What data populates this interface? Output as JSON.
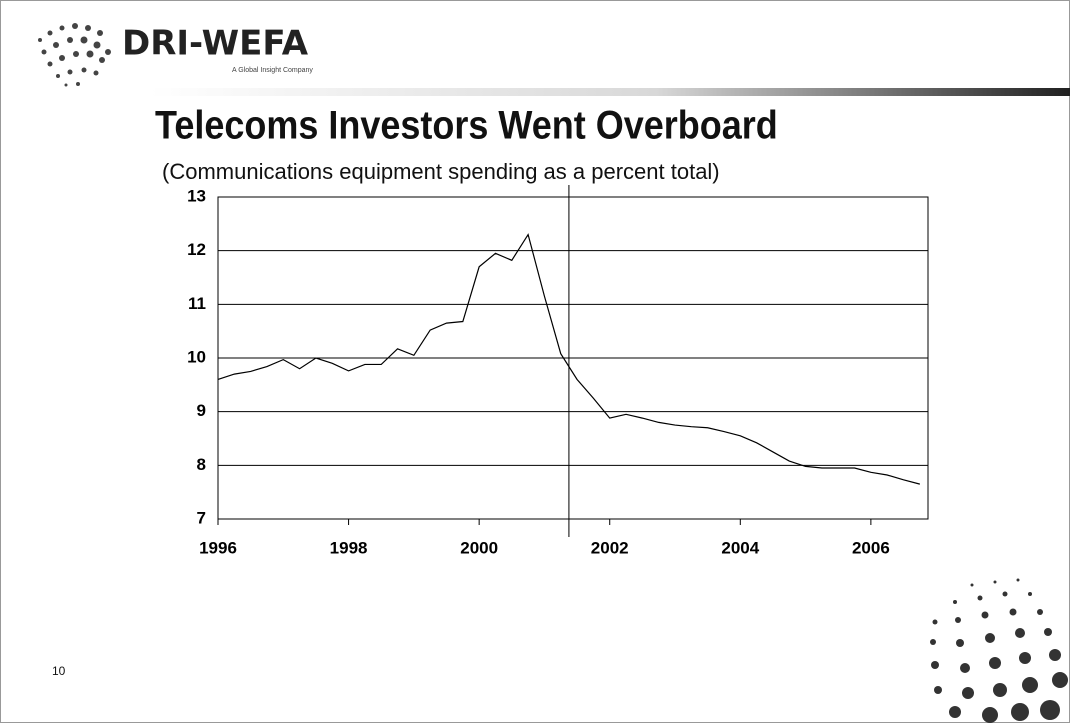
{
  "header": {
    "logo": "DRI-WEFA",
    "tagline": "A Global Insight Company"
  },
  "slide_number": "10",
  "chart_data": {
    "type": "line",
    "title": "Telecoms Investors Went Overboard",
    "subtitle": "(Communications equipment spending as a percent total)",
    "x": [
      1996,
      1996.25,
      1996.5,
      1996.75,
      1997,
      1997.25,
      1997.5,
      1997.75,
      1998,
      1998.25,
      1998.5,
      1998.75,
      1999,
      1999.25,
      1999.5,
      1999.75,
      2000,
      2000.25,
      2000.5,
      2000.75,
      2001,
      2001.25,
      2001.5,
      2001.75,
      2002,
      2002.25,
      2002.5,
      2002.75,
      2003,
      2003.25,
      2003.5,
      2003.75,
      2004,
      2004.25,
      2004.5,
      2004.75,
      2005,
      2005.25,
      2005.5,
      2005.75,
      2006,
      2006.25,
      2006.5,
      2006.75
    ],
    "series": [
      {
        "color": "#000000",
        "values": [
          9.6,
          9.7,
          9.75,
          9.84,
          9.97,
          9.8,
          10.0,
          9.9,
          9.76,
          9.88,
          9.88,
          10.17,
          10.05,
          10.52,
          10.65,
          10.68,
          11.7,
          11.95,
          11.82,
          12.3,
          11.15,
          10.08,
          9.6,
          9.25,
          8.88,
          8.95,
          8.88,
          8.8,
          8.75,
          8.72,
          8.7,
          8.63,
          8.55,
          8.42,
          8.25,
          8.08,
          7.98,
          7.95,
          7.95,
          7.95,
          7.87,
          7.82,
          7.73,
          7.65
        ]
      }
    ],
    "xlim": [
      1996,
      2006.875
    ],
    "xticks": [
      1996,
      1998,
      2000,
      2002,
      2004,
      2006
    ],
    "ylim": [
      7,
      13
    ],
    "yticks": [
      7,
      8,
      9,
      10,
      11,
      12,
      13
    ],
    "grid": true,
    "vline": 2001.375
  }
}
